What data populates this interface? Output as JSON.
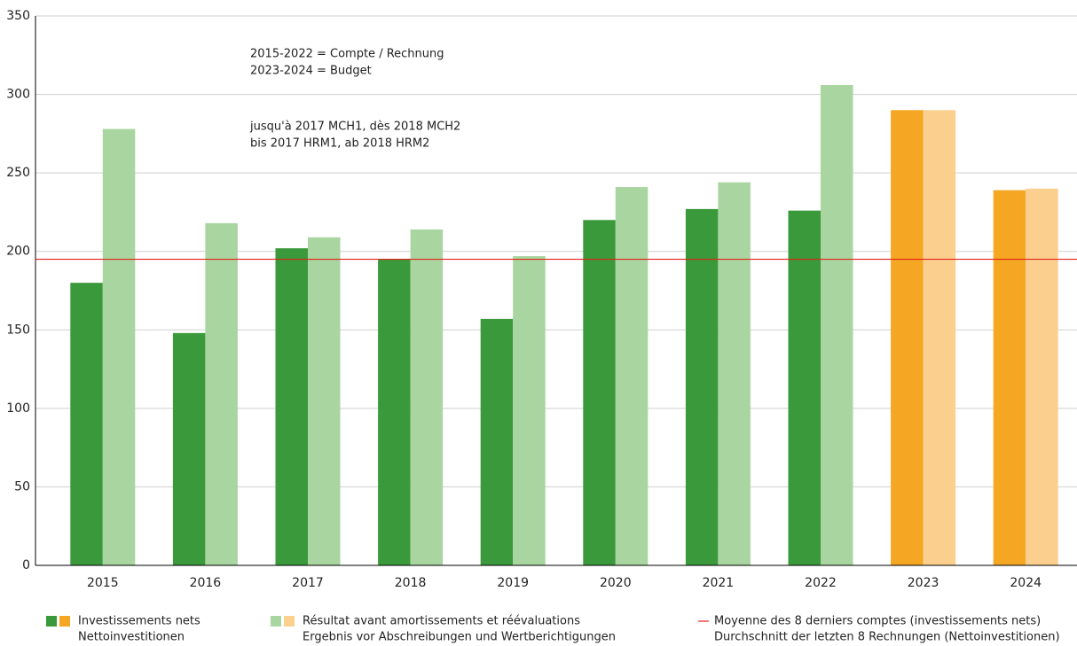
{
  "chart_data": {
    "type": "bar",
    "categories": [
      "2015",
      "2016",
      "2017",
      "2018",
      "2019",
      "2020",
      "2021",
      "2022",
      "2023",
      "2024"
    ],
    "series": [
      {
        "name": [
          "Investissements nets",
          "Nettoinvestitionen"
        ],
        "colors": [
          "#3a993a",
          "#3a993a",
          "#3a993a",
          "#3a993a",
          "#3a993a",
          "#3a993a",
          "#3a993a",
          "#3a993a",
          "#f5a623",
          "#f5a623"
        ],
        "values": [
          180,
          148,
          202,
          195,
          157,
          220,
          227,
          226,
          290,
          239
        ]
      },
      {
        "name": [
          "Résultat avant amortissements et réévaluations",
          "Ergebnis vor Abschreibungen und Wertberichtigungen"
        ],
        "colors": [
          "#a8d5a0",
          "#a8d5a0",
          "#a8d5a0",
          "#a8d5a0",
          "#a8d5a0",
          "#a8d5a0",
          "#a8d5a0",
          "#a8d5a0",
          "#fbd08f",
          "#fbd08f"
        ],
        "values": [
          278,
          218,
          209,
          214,
          197,
          241,
          244,
          306,
          290,
          240
        ]
      }
    ],
    "reference_line": {
      "name": [
        "Moyenne des 8 derniers comptes (investissements nets)",
        "Durchschnitt der letzten 8 Rechnungen (Nettoinvestitionen)"
      ],
      "value": 195,
      "color": "#e32119"
    },
    "annotations": [
      [
        "2015-2022 = Compte / Rechnung",
        "2023-2024 = Budget"
      ],
      [
        "jusqu'à 2017 MCH1, dès 2018 MCH2",
        "bis 2017 HRM1, ab 2018 HRM2"
      ]
    ],
    "ylim": [
      0,
      350
    ],
    "yticks": [
      0,
      50,
      100,
      150,
      200,
      250,
      300,
      350
    ],
    "grid": true
  }
}
